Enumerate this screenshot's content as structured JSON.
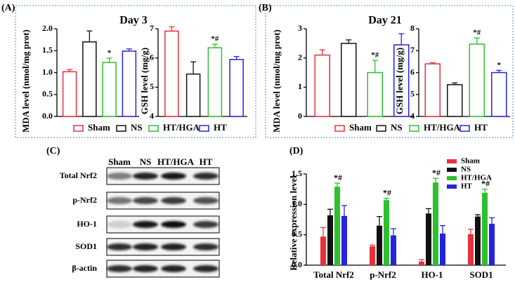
{
  "panel_labels": [
    "(A)",
    "(B)",
    "(C)",
    "(D)"
  ],
  "blot": {
    "columns": [
      "Sham",
      "NS",
      "HT/HGA",
      "HT"
    ],
    "rows": [
      "Total Nrf2",
      "p-Nrf2",
      "HO-1",
      "SOD1",
      "β-actin"
    ]
  },
  "chart_data": [
    {
      "type": "bar",
      "title": "Day 3",
      "ylabel": "MDA level (nmol/mg prot)",
      "categories": [
        "Sham",
        "NS",
        "HT/HGA",
        "HT"
      ],
      "colors": [
        "#e8303a",
        "#111111",
        "#2fbf2f",
        "#2323e0"
      ],
      "values": [
        1.02,
        1.7,
        1.23,
        1.49
      ],
      "errors": [
        0.05,
        0.25,
        0.1,
        0.05
      ],
      "significance": [
        null,
        null,
        "*",
        null
      ],
      "ylim": [
        0,
        2
      ],
      "yticks": [
        {
          "value": 0,
          "label": "0.0"
        },
        0.5,
        {
          "value": 1,
          "label": "1.0"
        },
        1.5,
        {
          "value": 2,
          "label": "2.0"
        }
      ]
    },
    {
      "type": "bar",
      "ylabel": "GSH level (mg/g)",
      "categories": [
        "Sham",
        "NS",
        "HT/HGA",
        "HT"
      ],
      "colors": [
        "#e8303a",
        "#111111",
        "#2fbf2f",
        "#2323e0"
      ],
      "values": [
        6.92,
        5.45,
        6.35,
        5.95
      ],
      "errors": [
        0.15,
        0.42,
        0.12,
        0.1
      ],
      "significance": [
        null,
        null,
        "*#",
        null
      ],
      "ylim": [
        4,
        7
      ],
      "yticks": [
        4,
        5,
        6,
        7
      ]
    },
    {
      "type": "bar",
      "title": "Day 21",
      "ylabel": "MDA level (nmol/mg prot)",
      "categories": [
        "Sham",
        "NS",
        "HT/HGA",
        "HT"
      ],
      "colors": [
        "#e8303a",
        "#111111",
        "#2fbf2f",
        "#2323e0"
      ],
      "values": [
        2.1,
        2.5,
        1.5,
        2.45
      ],
      "errors": [
        0.18,
        0.12,
        0.42,
        0.38
      ],
      "significance": [
        null,
        null,
        "*#",
        null
      ],
      "ylim": [
        0,
        3
      ],
      "yticks": [
        0,
        1,
        2,
        3
      ]
    },
    {
      "type": "bar",
      "ylabel": "GSH level (mg/g)",
      "categories": [
        "Sham",
        "NS",
        "HT/HGA",
        "HT"
      ],
      "colors": [
        "#e8303a",
        "#111111",
        "#2fbf2f",
        "#2323e0"
      ],
      "values": [
        6.4,
        5.45,
        7.3,
        6.0
      ],
      "errors": [
        0.05,
        0.08,
        0.28,
        0.1
      ],
      "significance": [
        null,
        null,
        "*#",
        "*"
      ],
      "ylim": [
        4,
        8
      ],
      "yticks": [
        4,
        5,
        6,
        7,
        8
      ]
    },
    {
      "type": "grouped_bar",
      "ylabel": "Relative expression level",
      "categories": [
        "Total Nrf2",
        "p-Nrf2",
        "HO-1",
        "SOD1"
      ],
      "series": [
        {
          "name": "Sham",
          "color": "#e8303a",
          "values": [
            0.47,
            0.31,
            0.06,
            0.51
          ],
          "errors": [
            0.15,
            0.02,
            0.03,
            0.08
          ],
          "significance": [
            null,
            null,
            null,
            null
          ]
        },
        {
          "name": "NS",
          "color": "#111111",
          "values": [
            0.82,
            0.65,
            0.85,
            0.8
          ],
          "errors": [
            0.1,
            0.15,
            0.08,
            0.03
          ],
          "significance": [
            null,
            null,
            null,
            null
          ]
        },
        {
          "name": "HT/HGA",
          "color": "#2fbf2f",
          "values": [
            1.29,
            1.07,
            1.36,
            1.19
          ],
          "errors": [
            0.06,
            0.03,
            0.07,
            0.06
          ],
          "significance": [
            "*#",
            "*#",
            "*#",
            "*#"
          ]
        },
        {
          "name": "HT",
          "color": "#2323e0",
          "values": [
            0.81,
            0.49,
            0.52,
            0.68
          ],
          "errors": [
            0.17,
            0.11,
            0.13,
            0.1
          ],
          "significance": [
            null,
            null,
            null,
            null
          ]
        }
      ],
      "ylim": [
        0,
        1.5
      ],
      "yticks": [
        {
          "value": 0,
          "label": "0.0"
        },
        0.5,
        {
          "value": 1,
          "label": "1.0"
        },
        1.5
      ]
    }
  ]
}
